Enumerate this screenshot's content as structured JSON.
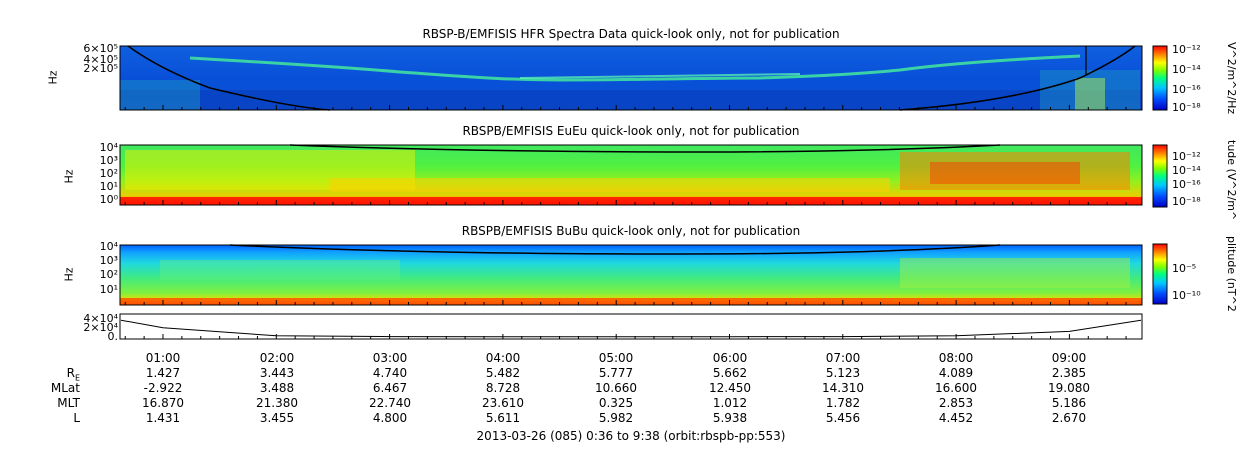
{
  "chart_data": [
    {
      "type": "heatmap",
      "title": "RBSP-B/EMFISIS  HFR Spectra Data quick-look only, not for publication",
      "ylabel": "Hz",
      "yticks": [
        "6×10⁵",
        "4×10⁵",
        "2×10⁵"
      ],
      "colorbar_label": "V^2/m^2/Hz",
      "colorbar_ticks": [
        "10⁻¹²",
        "10⁻¹⁴",
        "10⁻¹⁶",
        "10⁻¹⁸"
      ],
      "colorscale": [
        "#0000c8",
        "#0050ff",
        "#00c8ff",
        "#00ff80",
        "#80ff00",
        "#ffff00",
        "#ff8000",
        "#ff0000"
      ]
    },
    {
      "type": "heatmap",
      "title": "RBSPB/EMFISIS  EuEu quick-look only, not for publication",
      "ylabel": "Hz",
      "yticks": [
        "10⁴",
        "10³",
        "10²",
        "10¹",
        "10⁰"
      ],
      "colorbar_label": "tude (V^2/m^",
      "colorbar_ticks": [
        "10⁻¹²",
        "10⁻¹⁴",
        "10⁻¹⁶",
        "10⁻¹⁸"
      ]
    },
    {
      "type": "heatmap",
      "title": "RBSPB/EMFISIS  BuBu quick-look only, not for publication",
      "ylabel": "Hz",
      "yticks": [
        "10⁴",
        "10³",
        "10²",
        "10¹"
      ],
      "colorbar_label": "plitude (nT^2",
      "colorbar_ticks": [
        "10⁻⁵",
        "10⁻¹⁰"
      ]
    },
    {
      "type": "line",
      "yticks": [
        "4×10⁴",
        "2×10⁴",
        "0."
      ],
      "x": [
        "00:36",
        "01:00",
        "02:00",
        "03:00",
        "04:00",
        "05:00",
        "06:00",
        "07:00",
        "08:00",
        "09:00",
        "09:38"
      ],
      "y": [
        36000,
        20000,
        2500,
        900,
        700,
        650,
        700,
        900,
        2600,
        12000,
        36000
      ]
    }
  ],
  "time_axis": {
    "labels": [
      "01:00",
      "02:00",
      "03:00",
      "04:00",
      "05:00",
      "06:00",
      "07:00",
      "08:00",
      "09:00"
    ]
  },
  "ephemeris": {
    "row_labels": [
      "R",
      "MLat",
      "MLT",
      "L"
    ],
    "r_subscript": "E",
    "rows": [
      [
        "1.427",
        "3.443",
        "4.740",
        "5.482",
        "5.777",
        "5.662",
        "5.123",
        "4.089",
        "2.385"
      ],
      [
        "-2.922",
        "3.488",
        "6.467",
        "8.728",
        "10.660",
        "12.450",
        "14.310",
        "16.600",
        "19.080"
      ],
      [
        "16.870",
        "21.380",
        "22.740",
        "23.610",
        "0.325",
        "1.012",
        "1.782",
        "2.853",
        "5.186"
      ],
      [
        "1.431",
        "3.455",
        "4.800",
        "5.611",
        "5.982",
        "5.938",
        "5.456",
        "4.452",
        "2.670"
      ]
    ]
  },
  "footer": "2013-03-26 (085) 0:36 to 9:38 (orbit:rbspb-pp:553)"
}
